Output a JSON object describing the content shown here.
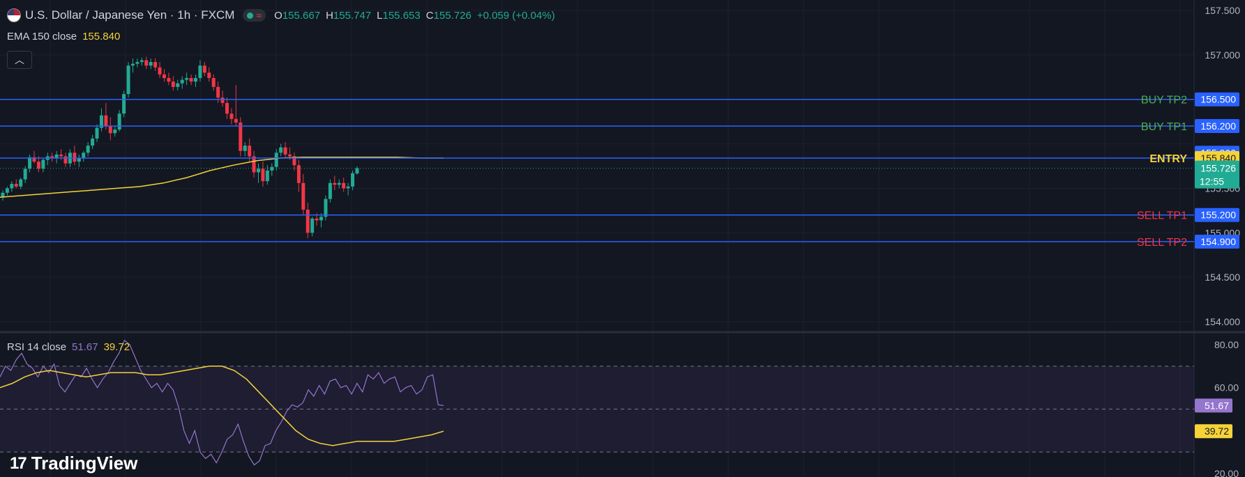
{
  "header": {
    "symbol_title": "U.S. Dollar / Japanese Yen · 1h · FXCM",
    "ohlc": [
      {
        "key": "O",
        "value": "155.667"
      },
      {
        "key": "H",
        "value": "155.747"
      },
      {
        "key": "L",
        "value": "155.653"
      },
      {
        "key": "C",
        "value": "155.726"
      }
    ],
    "change": "+0.059 (+0.04%)",
    "status_icons": [
      "market-open-dot-icon",
      "wave-icon"
    ]
  },
  "ema_legend": {
    "label": "EMA 150 close",
    "value": "155.840"
  },
  "collapse_button_icon": "chevron-up-icon",
  "rsi_legend": {
    "label": "RSI 14 close",
    "value1": "51.67",
    "value2": "39.72"
  },
  "branding": {
    "logo_mark": "17",
    "name": "TradingView"
  },
  "colors": {
    "background": "#131722",
    "grid": "#1e222d",
    "up": "#22ab94",
    "down": "#f23645",
    "level_line": "#2962ff",
    "ema": "#f5d339",
    "rsi": "#9575cd",
    "buy_label": "#4caf50",
    "sell_label": "#f23645",
    "entry_label": "#f5d339"
  },
  "chart_data": [
    {
      "type": "candlestick",
      "title": "U.S. Dollar / Japanese Yen · 1h · FXCM",
      "ylim": [
        153.9,
        157.65
      ],
      "y_ticks": [
        "157.500",
        "157.000",
        "155.500",
        "155.000",
        "154.500",
        "154.000"
      ],
      "ohlc": [
        [
          155.4,
          155.48,
          155.36,
          155.45
        ],
        [
          155.45,
          155.52,
          155.42,
          155.5
        ],
        [
          155.5,
          155.58,
          155.46,
          155.55
        ],
        [
          155.55,
          155.6,
          155.5,
          155.52
        ],
        [
          155.52,
          155.62,
          155.49,
          155.6
        ],
        [
          155.6,
          155.75,
          155.56,
          155.72
        ],
        [
          155.72,
          155.88,
          155.68,
          155.85
        ],
        [
          155.85,
          155.92,
          155.78,
          155.8
        ],
        [
          155.8,
          155.86,
          155.68,
          155.72
        ],
        [
          155.72,
          155.84,
          155.68,
          155.82
        ],
        [
          155.82,
          155.9,
          155.76,
          155.86
        ],
        [
          155.86,
          155.9,
          155.8,
          155.84
        ],
        [
          155.84,
          155.92,
          155.78,
          155.88
        ],
        [
          155.88,
          155.94,
          155.82,
          155.86
        ],
        [
          155.86,
          155.9,
          155.74,
          155.78
        ],
        [
          155.78,
          155.94,
          155.74,
          155.9
        ],
        [
          155.9,
          155.98,
          155.76,
          155.8
        ],
        [
          155.8,
          155.88,
          155.74,
          155.84
        ],
        [
          155.84,
          155.92,
          155.8,
          155.9
        ],
        [
          155.9,
          156.02,
          155.86,
          155.98
        ],
        [
          155.98,
          156.1,
          155.94,
          156.06
        ],
        [
          156.06,
          156.22,
          156.02,
          156.18
        ],
        [
          156.18,
          156.4,
          156.14,
          156.32
        ],
        [
          156.32,
          156.46,
          156.16,
          156.2
        ],
        [
          156.2,
          156.3,
          156.04,
          156.12
        ],
        [
          156.12,
          156.2,
          156.08,
          156.16
        ],
        [
          156.16,
          156.38,
          156.14,
          156.34
        ],
        [
          156.34,
          156.6,
          156.3,
          156.56
        ],
        [
          156.56,
          156.92,
          156.52,
          156.88
        ],
        [
          156.88,
          156.96,
          156.8,
          156.9
        ],
        [
          156.9,
          156.96,
          156.86,
          156.92
        ],
        [
          156.92,
          156.97,
          156.88,
          156.94
        ],
        [
          156.94,
          156.98,
          156.84,
          156.88
        ],
        [
          156.88,
          156.96,
          156.84,
          156.92
        ],
        [
          156.92,
          156.96,
          156.82,
          156.86
        ],
        [
          156.86,
          156.92,
          156.74,
          156.78
        ],
        [
          156.78,
          156.84,
          156.7,
          156.74
        ],
        [
          156.74,
          156.8,
          156.66,
          156.7
        ],
        [
          156.7,
          156.76,
          156.6,
          156.64
        ],
        [
          156.64,
          156.72,
          156.6,
          156.68
        ],
        [
          156.68,
          156.76,
          156.62,
          156.72
        ],
        [
          156.72,
          156.8,
          156.66,
          156.74
        ],
        [
          156.74,
          156.78,
          156.66,
          156.7
        ],
        [
          156.7,
          156.78,
          156.64,
          156.74
        ],
        [
          156.74,
          156.94,
          156.7,
          156.88
        ],
        [
          156.88,
          156.92,
          156.76,
          156.8
        ],
        [
          156.8,
          156.86,
          156.7,
          156.74
        ],
        [
          156.74,
          156.78,
          156.6,
          156.64
        ],
        [
          156.64,
          156.7,
          156.46,
          156.52
        ],
        [
          156.52,
          156.6,
          156.42,
          156.46
        ],
        [
          156.46,
          156.52,
          156.28,
          156.34
        ],
        [
          156.34,
          156.4,
          156.22,
          156.28
        ],
        [
          156.28,
          156.66,
          156.2,
          156.24
        ],
        [
          156.24,
          156.3,
          155.86,
          155.92
        ],
        [
          155.92,
          156.02,
          155.86,
          155.98
        ],
        [
          155.98,
          156.06,
          155.8,
          155.86
        ],
        [
          155.86,
          155.92,
          155.62,
          155.68
        ],
        [
          155.68,
          155.78,
          155.56,
          155.72
        ],
        [
          155.72,
          155.8,
          155.52,
          155.58
        ],
        [
          155.58,
          155.76,
          155.54,
          155.7
        ],
        [
          155.7,
          155.78,
          155.64,
          155.74
        ],
        [
          155.74,
          155.94,
          155.7,
          155.9
        ],
        [
          155.9,
          156.0,
          155.86,
          155.96
        ],
        [
          155.96,
          156.02,
          155.84,
          155.88
        ],
        [
          155.88,
          155.96,
          155.82,
          155.86
        ],
        [
          155.86,
          155.9,
          155.7,
          155.76
        ],
        [
          155.76,
          155.82,
          155.46,
          155.56
        ],
        [
          155.56,
          155.66,
          155.2,
          155.26
        ],
        [
          155.26,
          155.34,
          154.94,
          155.0
        ],
        [
          155.0,
          155.18,
          154.96,
          155.16
        ],
        [
          155.16,
          155.22,
          155.08,
          155.14
        ],
        [
          155.14,
          155.22,
          155.06,
          155.18
        ],
        [
          155.18,
          155.42,
          155.14,
          155.38
        ],
        [
          155.38,
          155.6,
          155.34,
          155.56
        ],
        [
          155.56,
          155.64,
          155.48,
          155.54
        ],
        [
          155.54,
          155.6,
          155.5,
          155.56
        ],
        [
          155.56,
          155.62,
          155.46,
          155.5
        ],
        [
          155.5,
          155.56,
          155.42,
          155.52
        ],
        [
          155.52,
          155.7,
          155.48,
          155.67
        ],
        [
          155.667,
          155.747,
          155.653,
          155.726
        ]
      ],
      "ema_150": [
        155.4,
        155.42,
        155.44,
        155.46,
        155.48,
        155.5,
        155.52,
        155.56,
        155.62,
        155.7,
        155.76,
        155.81,
        155.84,
        155.85,
        155.85,
        155.85,
        155.85,
        155.85,
        155.84,
        155.84
      ],
      "last_price": {
        "value": "155.726",
        "countdown": "12:55"
      },
      "levels": [
        {
          "label": "BUY TP2",
          "value": "156.500",
          "kind": "buy"
        },
        {
          "label": "BUY TP1",
          "value": "156.200",
          "kind": "buy"
        },
        {
          "label": "",
          "value": "155.900",
          "kind": "plain"
        },
        {
          "label": "ENTRY",
          "value": "155.840",
          "kind": "entry"
        },
        {
          "label": "SELL TP1",
          "value": "155.200",
          "kind": "sell"
        },
        {
          "label": "SELL TP2",
          "value": "154.900",
          "kind": "sell"
        }
      ],
      "partial_labels": [
        "155.500",
        "155.000"
      ]
    },
    {
      "type": "line",
      "title": "RSI 14 close",
      "ylim": [
        20,
        85
      ],
      "y_ticks": [
        "80.00",
        "60.00",
        "20.00"
      ],
      "bands": [
        70,
        50,
        30
      ],
      "series": [
        {
          "name": "RSI",
          "values": [
            65,
            70,
            68,
            73,
            76,
            71,
            69,
            65,
            70,
            67,
            71,
            61,
            58,
            62,
            66,
            65,
            69,
            64,
            60,
            64,
            67,
            72,
            76,
            82,
            80,
            74,
            68,
            64,
            60,
            62,
            58,
            62,
            59,
            51,
            40,
            34,
            40,
            30,
            27,
            29,
            25,
            30,
            36,
            38,
            43,
            35,
            28,
            24,
            26,
            33,
            34,
            40,
            44,
            49,
            52,
            51,
            53,
            59,
            56,
            61,
            57,
            63,
            64,
            60,
            61,
            57,
            62,
            58,
            66,
            64,
            67,
            62,
            64,
            65,
            58,
            60,
            61,
            57,
            59,
            65,
            66,
            52,
            51.67
          ]
        },
        {
          "name": "MA",
          "values": [
            60,
            62,
            65,
            67,
            68,
            67,
            66,
            65,
            66,
            67,
            67,
            67,
            66,
            66,
            67,
            68,
            69,
            70,
            70,
            68,
            64,
            58,
            52,
            46,
            40,
            36,
            34,
            33,
            34,
            35,
            35,
            35,
            35,
            36,
            37,
            38,
            39.72
          ]
        }
      ]
    }
  ]
}
